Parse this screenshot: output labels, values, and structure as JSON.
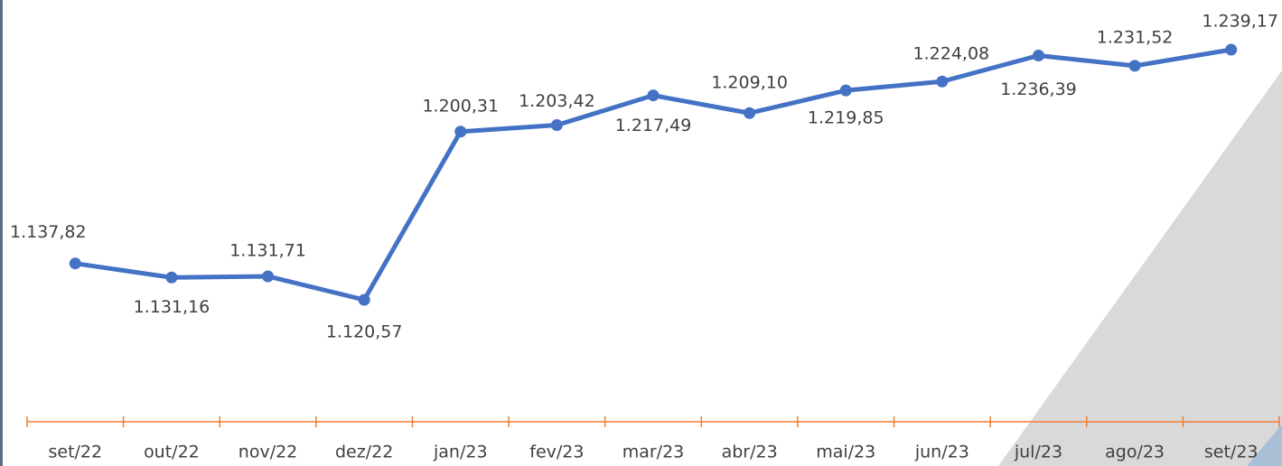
{
  "chart_data": {
    "type": "line",
    "categories": [
      "set/22",
      "out/22",
      "nov/22",
      "dez/22",
      "jan/23",
      "fev/23",
      "mar/23",
      "abr/23",
      "mai/23",
      "jun/23",
      "jul/23",
      "ago/23",
      "set/23"
    ],
    "series": [
      {
        "color": "#4472c4",
        "values": [
          1137.82,
          1131.16,
          1131.71,
          1120.57,
          1200.31,
          1203.42,
          1217.49,
          1209.1,
          1219.85,
          1224.08,
          1236.39,
          1231.52,
          1239.17
        ],
        "value_labels": [
          "1.137,82",
          "1.131,16",
          "1.131,71",
          "1.120,57",
          "1.200,31",
          "1.203,42",
          "1.217,49",
          "1.209,10",
          "1.219,85",
          "1.224,08",
          "1.236,39",
          "1.231,52",
          "1.239,17"
        ]
      }
    ]
  }
}
